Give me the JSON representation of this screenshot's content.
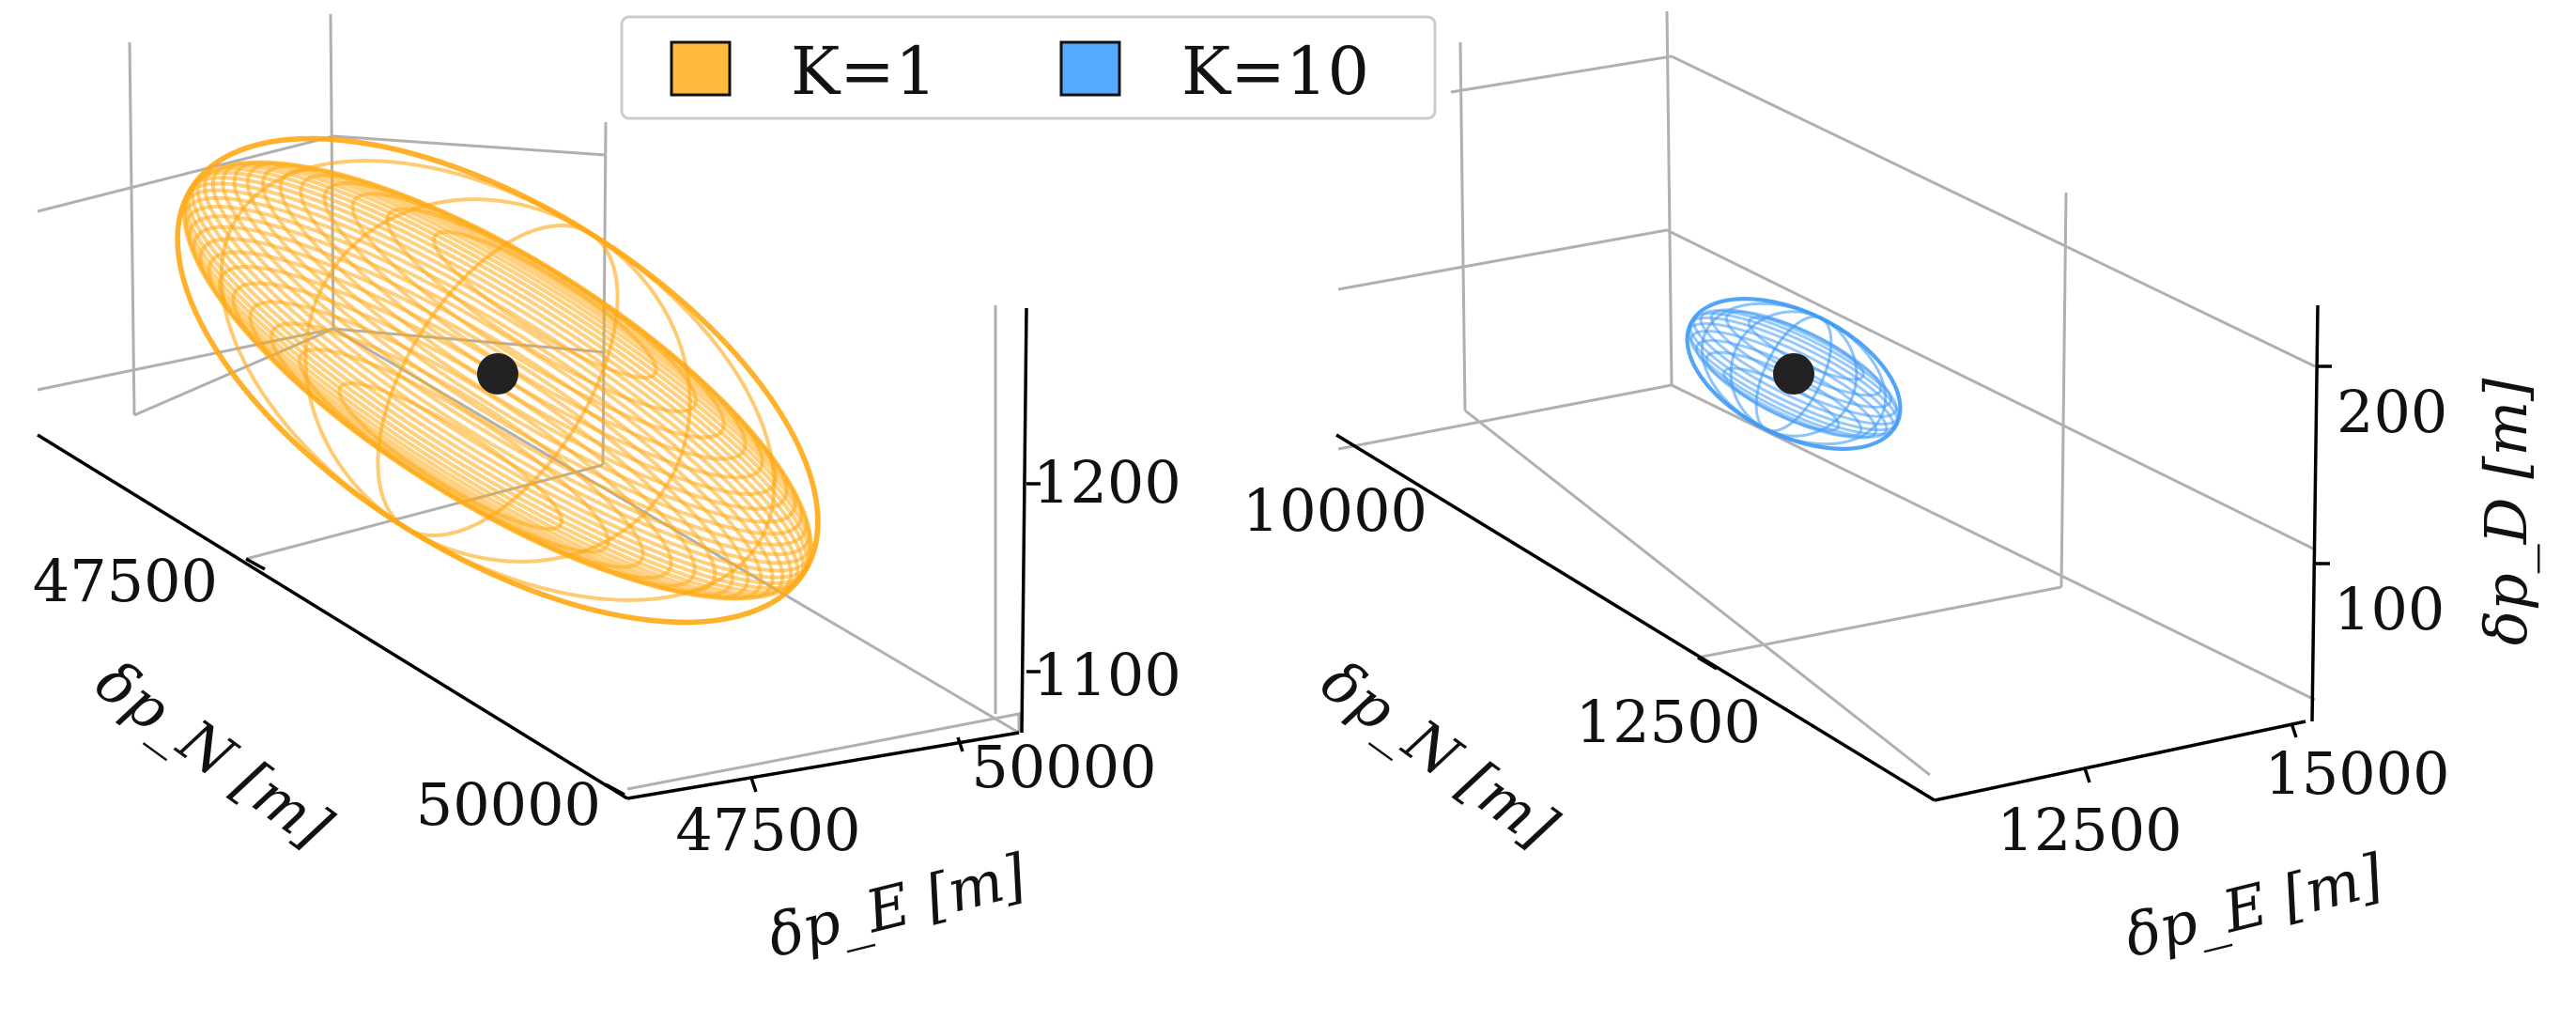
{
  "legend": {
    "location": "top-center",
    "entries": [
      {
        "label": "K=1",
        "color": "#ffb93c"
      },
      {
        "label": "K=10",
        "color": "#55aaff"
      }
    ]
  },
  "chart_data": [
    {
      "type": "3d-ellipsoid",
      "series": [
        {
          "name": "K=1",
          "color": "#ffa914"
        }
      ],
      "xlabel": "δp_E [m]",
      "ylabel": "δp_N [m]",
      "zlabel": "",
      "x_ticks": [
        "47500",
        "50000"
      ],
      "y_ticks": [
        "47500",
        "50000"
      ],
      "z_ticks": [
        "1100",
        "1200"
      ],
      "center": {
        "pE": 47000,
        "pN": 47400,
        "pD": 1170
      }
    },
    {
      "type": "3d-ellipsoid",
      "series": [
        {
          "name": "K=10",
          "color": "#3f9bf5"
        }
      ],
      "xlabel": "δp_E [m]",
      "ylabel": "δp_N [m]",
      "zlabel": "δp_D [m]",
      "x_ticks": [
        "12500",
        "15000"
      ],
      "y_ticks": [
        "10000",
        "12500"
      ],
      "z_ticks": [
        "100",
        "200"
      ],
      "center": {
        "pE": 12300,
        "pN": 10500,
        "pD": 215
      }
    }
  ]
}
